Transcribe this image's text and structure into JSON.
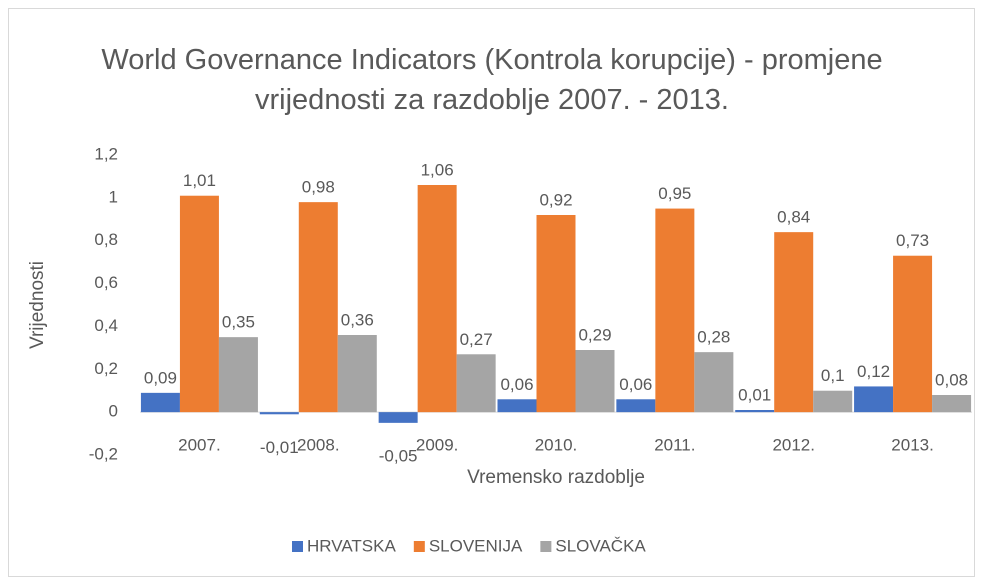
{
  "chart_data": {
    "type": "bar",
    "title": "World Governance Indicators (Kontrola korupcije) - promjene vrijednosti za razdoblje 2007. - 2013.",
    "x_label": "Vremensko razdoblje",
    "y_label": "Vrijednosti",
    "categories": [
      "2007.",
      "2008.",
      "2009.",
      "2010.",
      "2011.",
      "2012.",
      "2013."
    ],
    "series": [
      {
        "name": "HRVATSKA",
        "color": "#4472c4",
        "values": [
          0.09,
          -0.01,
          -0.05,
          0.06,
          0.06,
          0.01,
          0.12
        ],
        "value_labels": [
          "0,09",
          "-0,01",
          "-0,05",
          "0,06",
          "0,06",
          "0,01",
          "0,12"
        ]
      },
      {
        "name": "SLOVENIJA",
        "color": "#ed7d31",
        "values": [
          1.01,
          0.98,
          1.06,
          0.92,
          0.95,
          0.84,
          0.73
        ],
        "value_labels": [
          "1,01",
          "0,98",
          "1,06",
          "0,92",
          "0,95",
          "0,84",
          "0,73"
        ]
      },
      {
        "name": "SLOVAČKA",
        "color": "#a5a5a5",
        "values": [
          0.35,
          0.36,
          0.27,
          0.29,
          0.28,
          0.1,
          0.08
        ],
        "value_labels": [
          "0,35",
          "0,36",
          "0,27",
          "0,29",
          "0,28",
          "0,1",
          "0,08"
        ]
      }
    ],
    "ylim": [
      -0.2,
      1.2
    ],
    "yticks": [
      {
        "value": -0.2,
        "label": "-0,2"
      },
      0,
      {
        "value": 0.2,
        "label": "0,2"
      },
      {
        "value": 0.4,
        "label": "0,4"
      },
      {
        "value": 0.6,
        "label": "0,6"
      },
      {
        "value": 0.8,
        "label": "0,8"
      },
      1,
      {
        "value": 1.2,
        "label": "1,2"
      }
    ],
    "grid": false,
    "legend": "bottom"
  }
}
